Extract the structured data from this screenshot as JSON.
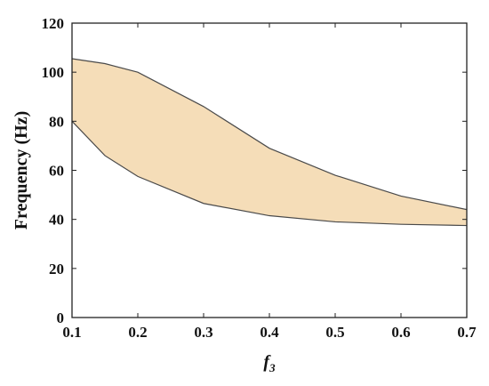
{
  "chart_data": {
    "type": "area",
    "xlabel": "f",
    "xlabel_subscript": "3",
    "ylabel": "Frequency (Hz)",
    "xlim": [
      0.1,
      0.7
    ],
    "ylim": [
      0,
      120
    ],
    "xticks": [
      "0.1",
      "0.2",
      "0.3",
      "0.4",
      "0.5",
      "0.6",
      "0.7"
    ],
    "yticks": [
      "0",
      "20",
      "40",
      "60",
      "80",
      "100",
      "120"
    ],
    "grid": false,
    "legend": "none",
    "fill_color": "#f5ddb8",
    "line_color": "#4a4a4a",
    "series": [
      {
        "x": [
          0.1,
          0.15,
          0.2,
          0.3,
          0.4,
          0.5,
          0.6,
          0.7
        ],
        "upper": [
          105.5,
          103.5,
          100,
          86,
          69,
          58,
          49.5,
          44
        ],
        "lower": [
          80,
          66,
          57.5,
          46.5,
          41.5,
          39,
          38,
          37.5
        ]
      }
    ]
  }
}
